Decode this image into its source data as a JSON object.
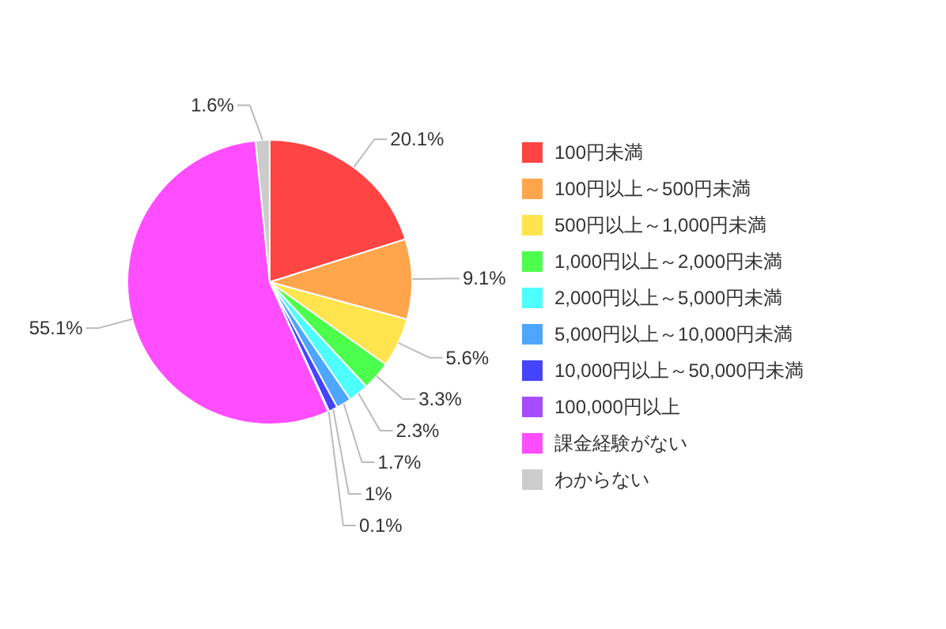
{
  "chart_data": {
    "type": "pie",
    "categories": [
      "100円未満",
      "100円以上～500円未満",
      "500円以上～1,000円未満",
      "1,000円以上～2,000円未満",
      "2,000円以上～5,000円未満",
      "5,000円以上～10,000円未満",
      "10,000円以上～50,000円未満",
      "100,000円以上",
      "課金経験がない",
      "わからない"
    ],
    "values": [
      20.1,
      9.1,
      5.6,
      3.3,
      2.3,
      1.7,
      1,
      0.1,
      55.1,
      1.6
    ],
    "colors": [
      "#ff4444",
      "#ffa64d",
      "#ffe44d",
      "#4dff4d",
      "#4dffff",
      "#4da6ff",
      "#4444ff",
      "#a64dff",
      "#ff4dff",
      "#cccccc"
    ],
    "value_labels": [
      "20.1%",
      "9.1%",
      "5.6%",
      "3.3%",
      "2.3%",
      "1.7%",
      "1%",
      "0.1%",
      "55.1%",
      "1.6%"
    ],
    "legend": "right"
  }
}
